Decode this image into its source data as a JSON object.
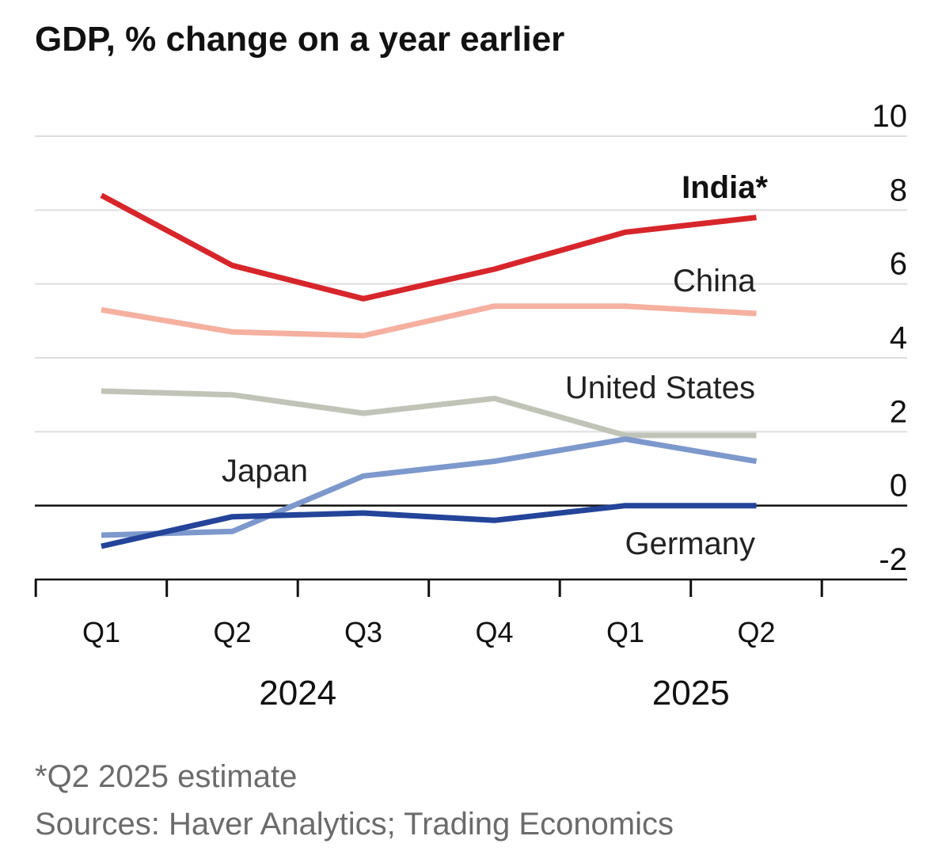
{
  "chart_data": {
    "type": "line",
    "title": "GDP, % change on a year earlier",
    "categories": [
      "Q1",
      "Q2",
      "Q3",
      "Q4",
      "Q1",
      "Q2"
    ],
    "years": [
      {
        "label": "2024",
        "quarters": [
          0,
          1,
          2,
          3
        ]
      },
      {
        "label": "2025",
        "quarters": [
          4,
          5
        ]
      }
    ],
    "ylim": [
      -2,
      10
    ],
    "yticks": [
      "10",
      "8",
      "6",
      "4",
      "2",
      "0",
      "-2"
    ],
    "ytick_values": [
      10,
      8,
      6,
      4,
      2,
      0,
      -2
    ],
    "series": [
      {
        "name": "China",
        "label": "China",
        "color": "#f5b0a0",
        "values": [
          5.3,
          4.7,
          4.6,
          5.4,
          5.4,
          5.2
        ]
      },
      {
        "name": "United States",
        "label": "United States",
        "color": "#c0c4b8",
        "values": [
          3.1,
          3.0,
          2.5,
          2.9,
          1.9,
          1.9
        ]
      },
      {
        "name": "Japan",
        "label": "Japan",
        "color": "#7d98cc",
        "values": [
          -0.8,
          -0.7,
          0.8,
          1.2,
          1.8,
          1.2
        ]
      },
      {
        "name": "Germany",
        "label": "Germany",
        "color": "#24449a",
        "values": [
          -1.1,
          -0.3,
          -0.2,
          -0.4,
          0.0,
          0.0
        ]
      },
      {
        "name": "India",
        "label": "India*",
        "color": "#d7262b",
        "values": [
          8.4,
          6.5,
          5.6,
          6.4,
          7.4,
          7.8
        ]
      }
    ],
    "footnote": "*Q2 2025 estimate",
    "source": "Sources: Haver Analytics; Trading Economics"
  },
  "colors": {
    "grid": "#dedede",
    "zero_line": "#111111",
    "axis": "#111111"
  }
}
